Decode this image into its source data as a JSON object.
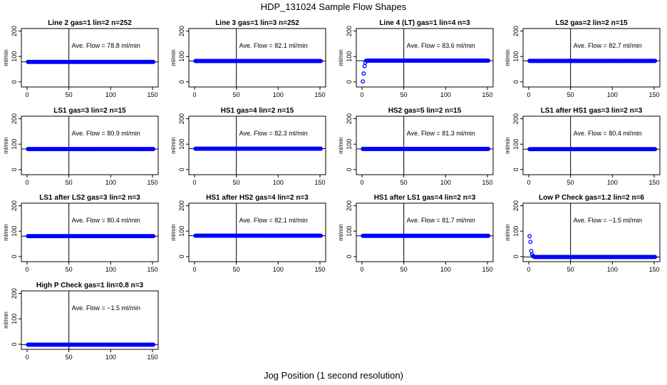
{
  "figure": {
    "title": "HDP_131024  Sample Flow Shapes",
    "xlabel": "Jog Position (1 second resolution)"
  },
  "style": {
    "point_color": "#0000ff",
    "axis_color": "#000000"
  },
  "chart_data": [
    {
      "type": "scatter",
      "title": "Line 2 gas=1 lin=2 n=252",
      "annotation": "Ave. Flow =  78.8  ml/min",
      "ylabel": "ml/min",
      "xlim": [
        0,
        150
      ],
      "ylim": [
        -20,
        210
      ],
      "xticks": [
        0,
        50,
        100,
        150
      ],
      "yticks": [
        0,
        100,
        200
      ],
      "vline": 50,
      "hline": 78.8,
      "series": [
        {
          "shape": "flat",
          "level": 78.8,
          "x_range": [
            1,
            151
          ]
        }
      ]
    },
    {
      "type": "scatter",
      "title": "Line 3 gas=1 lin=3 n=252",
      "annotation": "Ave. Flow =  82.1  ml/min",
      "ylabel": "ml/min",
      "xlim": [
        0,
        150
      ],
      "ylim": [
        -20,
        210
      ],
      "xticks": [
        0,
        50,
        100,
        150
      ],
      "yticks": [
        0,
        100,
        200
      ],
      "vline": 50,
      "hline": 82.1,
      "series": [
        {
          "shape": "flat",
          "level": 82.1,
          "x_range": [
            1,
            151
          ]
        }
      ]
    },
    {
      "type": "scatter",
      "title": "Line 4 (LT) gas=1 lin=4 n=3",
      "annotation": "Ave. Flow =  83.6  ml/min",
      "ylabel": "ml/min",
      "xlim": [
        0,
        150
      ],
      "ylim": [
        -20,
        210
      ],
      "xticks": [
        0,
        50,
        100,
        150
      ],
      "yticks": [
        0,
        100,
        200
      ],
      "vline": 50,
      "hline": 83.6,
      "series": [
        {
          "shape": "flat",
          "level": 83.6,
          "x_range": [
            5,
            151
          ],
          "extra_points": [
            [
              1,
              2
            ],
            [
              2,
              33
            ],
            [
              3,
              62
            ],
            [
              4,
              76
            ]
          ]
        }
      ]
    },
    {
      "type": "scatter",
      "title": "LS2 gas=2 lin=2 n=15",
      "annotation": "Ave. Flow =  82.7  ml/min",
      "ylabel": "ml/min",
      "xlim": [
        0,
        150
      ],
      "ylim": [
        -20,
        210
      ],
      "xticks": [
        0,
        50,
        100,
        150
      ],
      "yticks": [
        0,
        100,
        200
      ],
      "vline": 50,
      "hline": 82.7,
      "series": [
        {
          "shape": "flat",
          "level": 82.7,
          "x_range": [
            1,
            151
          ]
        }
      ]
    },
    {
      "type": "scatter",
      "title": "LS1 gas=3 lin=2 n=15",
      "annotation": "Ave. Flow =  80.9  ml/min",
      "ylabel": "ml/min",
      "xlim": [
        0,
        150
      ],
      "ylim": [
        -20,
        210
      ],
      "xticks": [
        0,
        50,
        100,
        150
      ],
      "yticks": [
        0,
        100,
        200
      ],
      "vline": 50,
      "hline": 80.9,
      "series": [
        {
          "shape": "flat",
          "level": 80.9,
          "x_range": [
            1,
            151
          ]
        }
      ]
    },
    {
      "type": "scatter",
      "title": "HS1 gas=4 lin=2 n=15",
      "annotation": "Ave. Flow =  82.3  ml/min",
      "ylabel": "ml/min",
      "xlim": [
        0,
        150
      ],
      "ylim": [
        -20,
        210
      ],
      "xticks": [
        0,
        50,
        100,
        150
      ],
      "yticks": [
        0,
        100,
        200
      ],
      "vline": 50,
      "hline": 82.3,
      "series": [
        {
          "shape": "flat",
          "level": 82.3,
          "x_range": [
            1,
            151
          ]
        }
      ]
    },
    {
      "type": "scatter",
      "title": "HS2 gas=5 lin=2 n=15",
      "annotation": "Ave. Flow =  81.3  ml/min",
      "ylabel": "ml/min",
      "xlim": [
        0,
        150
      ],
      "ylim": [
        -20,
        210
      ],
      "xticks": [
        0,
        50,
        100,
        150
      ],
      "yticks": [
        0,
        100,
        200
      ],
      "vline": 50,
      "hline": 81.3,
      "series": [
        {
          "shape": "flat",
          "level": 81.3,
          "x_range": [
            1,
            151
          ]
        }
      ]
    },
    {
      "type": "scatter",
      "title": "LS1 after HS1 gas=3 lin=2 n=3",
      "annotation": "Ave. Flow =  80.4  ml/min",
      "ylabel": "ml/min",
      "xlim": [
        0,
        150
      ],
      "ylim": [
        -20,
        210
      ],
      "xticks": [
        0,
        50,
        100,
        150
      ],
      "yticks": [
        0,
        100,
        200
      ],
      "vline": 50,
      "hline": 80.4,
      "series": [
        {
          "shape": "flat",
          "level": 80.4,
          "x_range": [
            1,
            151
          ]
        }
      ]
    },
    {
      "type": "scatter",
      "title": "LS1 after LS2 gas=3 lin=2 n=3",
      "annotation": "Ave. Flow =  80.4  ml/min",
      "ylabel": "ml/min",
      "xlim": [
        0,
        150
      ],
      "ylim": [
        -20,
        210
      ],
      "xticks": [
        0,
        50,
        100,
        150
      ],
      "yticks": [
        0,
        100,
        200
      ],
      "vline": 50,
      "hline": 80.4,
      "series": [
        {
          "shape": "flat",
          "level": 80.4,
          "x_range": [
            1,
            151
          ]
        }
      ]
    },
    {
      "type": "scatter",
      "title": "HS1 after HS2 gas=4 lin=2 n=3",
      "annotation": "Ave. Flow =  82.1  ml/min",
      "ylabel": "ml/min",
      "xlim": [
        0,
        150
      ],
      "ylim": [
        -20,
        210
      ],
      "xticks": [
        0,
        50,
        100,
        150
      ],
      "yticks": [
        0,
        100,
        200
      ],
      "vline": 50,
      "hline": 82.1,
      "series": [
        {
          "shape": "flat",
          "level": 82.1,
          "x_range": [
            1,
            151
          ]
        }
      ]
    },
    {
      "type": "scatter",
      "title": "HS1 after LS1 gas=4 lin=2 n=3",
      "annotation": "Ave. Flow =  81.7  ml/min",
      "ylabel": "ml/min",
      "xlim": [
        0,
        150
      ],
      "ylim": [
        -20,
        210
      ],
      "xticks": [
        0,
        50,
        100,
        150
      ],
      "yticks": [
        0,
        100,
        200
      ],
      "vline": 50,
      "hline": 81.7,
      "series": [
        {
          "shape": "flat",
          "level": 81.7,
          "x_range": [
            1,
            151
          ]
        }
      ]
    },
    {
      "type": "scatter",
      "title": "Low P Check gas=1.2 lin=2 n=6",
      "annotation": "Ave. Flow =  −1.5  ml/min",
      "ylabel": "ml/min",
      "xlim": [
        0,
        150
      ],
      "ylim": [
        -20,
        210
      ],
      "xticks": [
        0,
        50,
        100,
        150
      ],
      "yticks": [
        0,
        100,
        200
      ],
      "vline": 50,
      "hline": -1.5,
      "series": [
        {
          "shape": "flat",
          "level": -1.5,
          "x_range": [
            7,
            151
          ],
          "extra_points": [
            [
              1,
              80
            ],
            [
              2,
              58
            ],
            [
              3,
              22
            ],
            [
              4,
              8
            ],
            [
              5,
              2
            ],
            [
              6,
              0
            ]
          ]
        }
      ]
    },
    {
      "type": "scatter",
      "title": "High P Check gas=1 lin=0.8 n=3",
      "annotation": "Ave. Flow =  −1.5  ml/min",
      "ylabel": "ml/min",
      "xlim": [
        0,
        150
      ],
      "ylim": [
        -20,
        210
      ],
      "xticks": [
        0,
        50,
        100,
        150
      ],
      "yticks": [
        0,
        100,
        200
      ],
      "vline": 50,
      "hline": -1.5,
      "series": [
        {
          "shape": "flat",
          "level": -1.5,
          "x_range": [
            1,
            151
          ]
        }
      ]
    }
  ]
}
